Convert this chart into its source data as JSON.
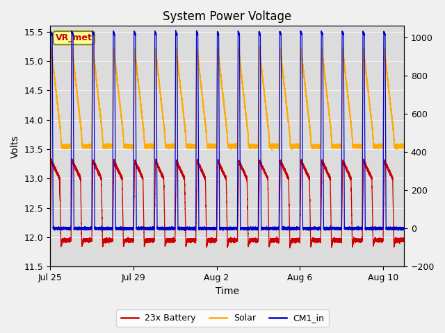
{
  "title": "System Power Voltage",
  "xlabel": "Time",
  "ylabel": "Volts",
  "ylim_left": [
    11.5,
    15.6
  ],
  "ylim_right": [
    -200,
    1060
  ],
  "yticks_left": [
    11.5,
    12.0,
    12.5,
    13.0,
    13.5,
    14.0,
    14.5,
    15.0,
    15.5
  ],
  "yticks_right": [
    -200,
    0,
    200,
    400,
    600,
    800,
    1000
  ],
  "num_cycles": 17,
  "t_total": 17.0,
  "battery_color": "#cc0000",
  "solar_color": "#ffaa00",
  "cm1_color": "#0000cc",
  "background_color": "#dcdcdc",
  "annotation_text": "VR_met",
  "annotation_bg": "#ffff99",
  "legend_labels": [
    "23x Battery",
    "Solar",
    "CM1_in"
  ],
  "legend_colors": [
    "#cc0000",
    "#ffaa00",
    "#0000cc"
  ],
  "xtick_positions": [
    0,
    4,
    8,
    12,
    16
  ],
  "xtick_labels": [
    "Jul 25",
    "Jul 29",
    "Aug 2",
    "Aug 6",
    "Aug 10"
  ]
}
